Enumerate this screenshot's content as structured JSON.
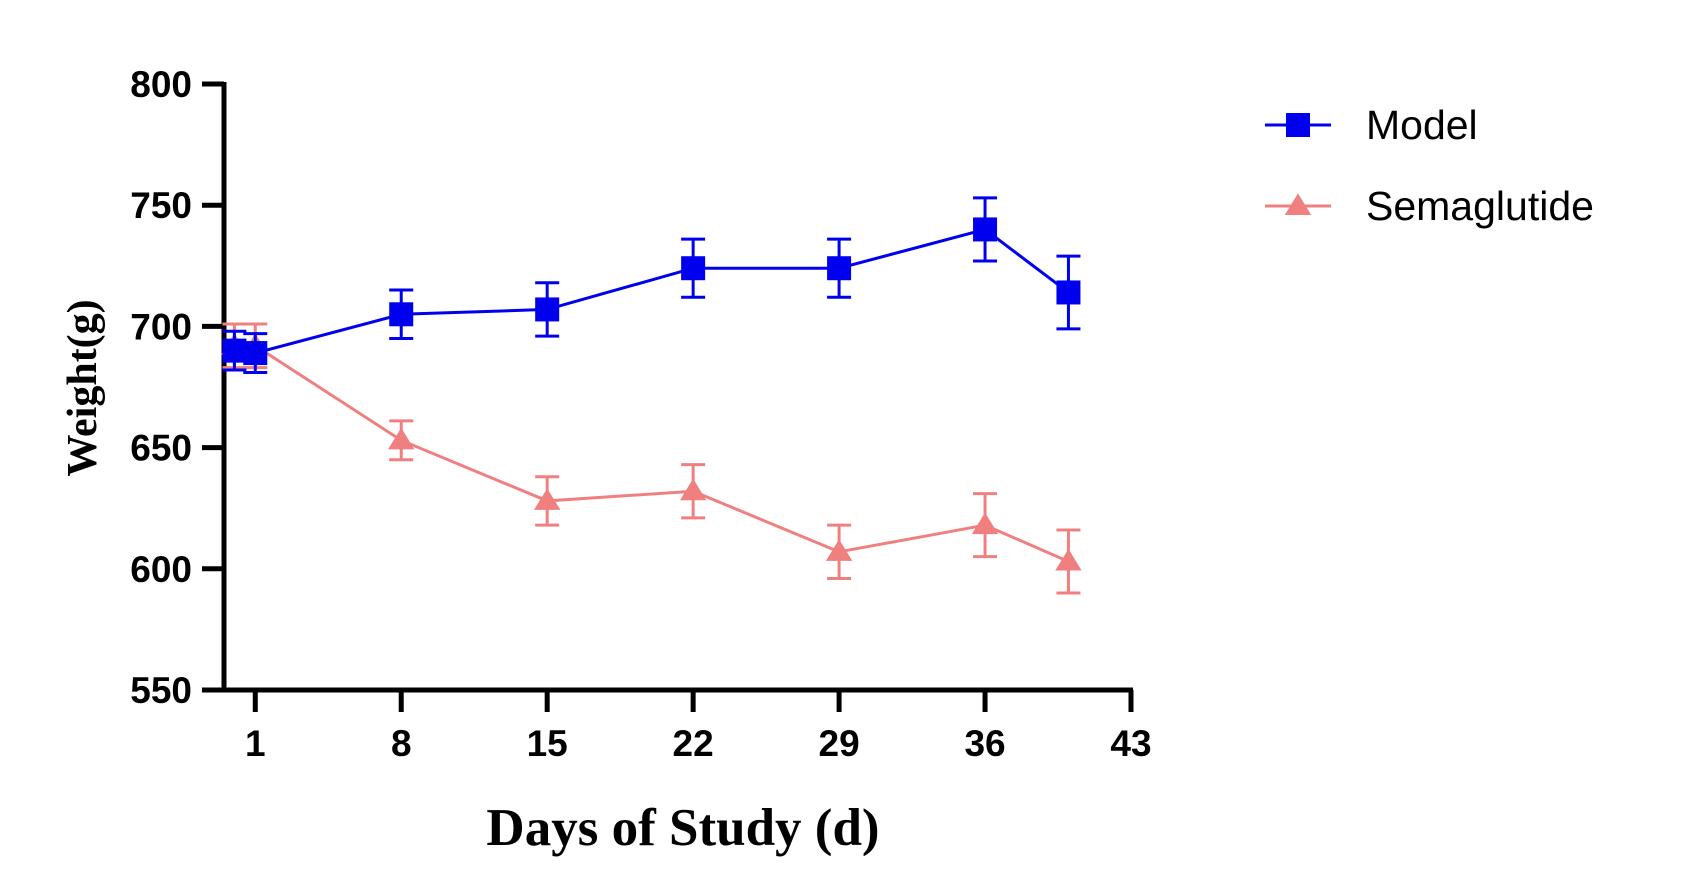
{
  "chart_data": {
    "type": "line",
    "xlabel": "Days of Study (d)",
    "ylabel": "Weight(g)",
    "xlim": [
      -0.5,
      43
    ],
    "ylim": [
      550,
      800
    ],
    "xticks": [
      1,
      8,
      15,
      22,
      29,
      36,
      43
    ],
    "yticks": [
      550,
      600,
      650,
      700,
      750,
      800
    ],
    "grid": false,
    "legend_position": "top-right",
    "series": [
      {
        "name": "Model",
        "color": "#0000ee",
        "marker": "square",
        "x": [
          0,
          1,
          8,
          15,
          22,
          29,
          36,
          40
        ],
        "y": [
          690,
          689,
          705,
          707,
          724,
          724,
          740,
          714
        ],
        "error": [
          8,
          8,
          10,
          11,
          12,
          12,
          13,
          15
        ]
      },
      {
        "name": "Semaglutide",
        "color": "#f08080",
        "marker": "triangle",
        "x": [
          0,
          1,
          8,
          15,
          22,
          29,
          36,
          40
        ],
        "y": [
          692,
          692,
          653,
          628,
          632,
          607,
          618,
          603
        ],
        "error": [
          9,
          9,
          8,
          10,
          11,
          11,
          13,
          13
        ]
      }
    ]
  }
}
